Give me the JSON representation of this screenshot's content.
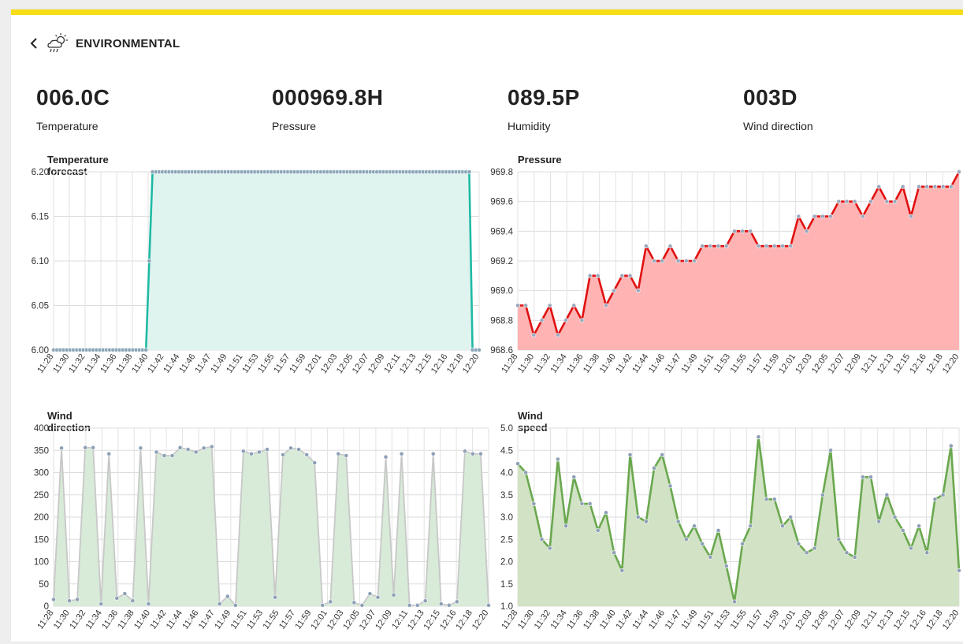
{
  "header": {
    "title": "ENVIRONMENTAL",
    "back_icon": "chevron-left-icon",
    "weather_icon": "partly-cloudy-rain-icon"
  },
  "stats": [
    {
      "value": "006.0C",
      "label": "Temperature"
    },
    {
      "value": "000969.8H",
      "label": "Pressure"
    },
    {
      "value": "089.5P",
      "label": "Humidity"
    },
    {
      "value": "003D",
      "label": "Wind direction"
    }
  ],
  "colors": {
    "accent_bar": "#f7dd16",
    "temp_line": "#1ebaa4",
    "pressure_line": "#e01010",
    "wind_dir_line": "#c8c8c8",
    "wind_speed_line": "#6aa84f"
  },
  "chart_data": [
    {
      "type": "area",
      "title": "Temperature forecast",
      "x_labels": [
        "11:28",
        "11:30",
        "11:32",
        "11:34",
        "11:36",
        "11:38",
        "11:40",
        "11:42",
        "11:44",
        "11:46",
        "11:47",
        "11:49",
        "11:51",
        "11:53",
        "11:55",
        "11:57",
        "11:59",
        "12:01",
        "12:03",
        "12:05",
        "12:07",
        "12:09",
        "12:11",
        "12:13",
        "12:15",
        "12:16",
        "12:18",
        "12:20"
      ],
      "ylim": [
        6.0,
        6.2
      ],
      "yticks": [
        "6.00",
        "6.05",
        "6.10",
        "6.15",
        "6.20"
      ],
      "series": [
        {
          "values": [
            6.0,
            6.0,
            6.0,
            6.0,
            6.0,
            6.0,
            6.0,
            6.0,
            6.0,
            6.0,
            6.0,
            6.0,
            6.0,
            6.0,
            6.0,
            6.0,
            6.0,
            6.0,
            6.0,
            6.0,
            6.0,
            6.0,
            6.0,
            6.0,
            6.0,
            6.0,
            6.0,
            6.0,
            6.0,
            6.1,
            6.2,
            6.2,
            6.2,
            6.2,
            6.2,
            6.2,
            6.2,
            6.2,
            6.2,
            6.2,
            6.2,
            6.2,
            6.2,
            6.2,
            6.2,
            6.2,
            6.2,
            6.2,
            6.2,
            6.2,
            6.2,
            6.2,
            6.2,
            6.2,
            6.2,
            6.2,
            6.2,
            6.2,
            6.2,
            6.2,
            6.2,
            6.2,
            6.2,
            6.2,
            6.2,
            6.2,
            6.2,
            6.2,
            6.2,
            6.2,
            6.2,
            6.2,
            6.2,
            6.2,
            6.2,
            6.2,
            6.2,
            6.2,
            6.2,
            6.2,
            6.2,
            6.2,
            6.2,
            6.2,
            6.2,
            6.2,
            6.2,
            6.2,
            6.2,
            6.2,
            6.2,
            6.2,
            6.2,
            6.2,
            6.2,
            6.2,
            6.2,
            6.2,
            6.2,
            6.2,
            6.2,
            6.2,
            6.2,
            6.2,
            6.2,
            6.2,
            6.2,
            6.2,
            6.2,
            6.2,
            6.2,
            6.2,
            6.2,
            6.2,
            6.2,
            6.2,
            6.2,
            6.2,
            6.2,
            6.2,
            6.2,
            6.2,
            6.2,
            6.2,
            6.2,
            6.2,
            6.2,
            6.0,
            6.0,
            6.0
          ]
        }
      ],
      "grid": true
    },
    {
      "type": "area",
      "title": "Pressure",
      "x_labels": [
        "11:28",
        "11:30",
        "11:32",
        "11:34",
        "11:36",
        "11:38",
        "11:40",
        "11:42",
        "11:44",
        "11:46",
        "11:47",
        "11:49",
        "11:51",
        "11:53",
        "11:55",
        "11:57",
        "11:59",
        "12:01",
        "12:03",
        "12:05",
        "12:07",
        "12:09",
        "12:11",
        "12:13",
        "12:15",
        "12:16",
        "12:18",
        "12:20"
      ],
      "ylim": [
        968.6,
        969.8
      ],
      "yticks": [
        "968.6",
        "968.8",
        "969.0",
        "969.2",
        "969.4",
        "969.6",
        "969.8"
      ],
      "series": [
        {
          "values": [
            968.9,
            968.9,
            968.7,
            968.8,
            968.9,
            968.7,
            968.8,
            968.9,
            968.8,
            969.1,
            969.1,
            968.9,
            969.0,
            969.1,
            969.1,
            969.0,
            969.3,
            969.2,
            969.2,
            969.3,
            969.2,
            969.2,
            969.2,
            969.3,
            969.3,
            969.3,
            969.3,
            969.4,
            969.4,
            969.4,
            969.3,
            969.3,
            969.3,
            969.3,
            969.3,
            969.5,
            969.4,
            969.5,
            969.5,
            969.5,
            969.6,
            969.6,
            969.6,
            969.5,
            969.6,
            969.7,
            969.6,
            969.6,
            969.7,
            969.5,
            969.7,
            969.7,
            969.7,
            969.7,
            969.7,
            969.8
          ]
        }
      ],
      "grid": true
    },
    {
      "type": "area",
      "title": "Wind direction",
      "x_labels": [
        "11:28",
        "11:30",
        "11:32",
        "11:34",
        "11:36",
        "11:38",
        "11:40",
        "11:42",
        "11:44",
        "11:46",
        "11:47",
        "11:49",
        "11:51",
        "11:53",
        "11:55",
        "11:57",
        "11:59",
        "12:01",
        "12:03",
        "12:05",
        "12:07",
        "12:09",
        "12:11",
        "12:13",
        "12:15",
        "12:16",
        "12:18",
        "12:20"
      ],
      "ylim": [
        0,
        400
      ],
      "yticks": [
        "0",
        "50",
        "100",
        "150",
        "200",
        "250",
        "300",
        "350",
        "400"
      ],
      "series": [
        {
          "values": [
            15,
            355,
            12,
            15,
            356,
            356,
            5,
            342,
            18,
            28,
            12,
            355,
            5,
            346,
            338,
            338,
            356,
            352,
            346,
            355,
            358,
            5,
            22,
            2,
            348,
            342,
            346,
            352,
            20,
            340,
            355,
            352,
            340,
            322,
            2,
            10,
            342,
            338,
            8,
            2,
            28,
            20,
            335,
            25,
            342,
            2,
            2,
            12,
            342,
            5,
            2,
            10,
            348,
            342,
            342,
            2
          ]
        }
      ],
      "grid": true
    },
    {
      "type": "area",
      "title": "Wind speed",
      "x_labels": [
        "11:28",
        "11:30",
        "11:32",
        "11:34",
        "11:36",
        "11:38",
        "11:40",
        "11:42",
        "11:44",
        "11:46",
        "11:47",
        "11:49",
        "11:51",
        "11:53",
        "11:55",
        "11:57",
        "11:59",
        "12:01",
        "12:03",
        "12:05",
        "12:07",
        "12:09",
        "12:11",
        "12:13",
        "12:15",
        "12:16",
        "12:18",
        "12:20"
      ],
      "ylim": [
        1.0,
        5.0
      ],
      "yticks": [
        "1.0",
        "1.5",
        "2.0",
        "2.5",
        "3.0",
        "3.5",
        "4.0",
        "4.5",
        "5.0"
      ],
      "series": [
        {
          "values": [
            4.2,
            4.0,
            3.3,
            2.5,
            2.3,
            4.3,
            2.8,
            3.9,
            3.3,
            3.3,
            2.7,
            3.1,
            2.2,
            1.8,
            4.4,
            3.0,
            2.9,
            4.1,
            4.4,
            3.7,
            2.9,
            2.5,
            2.8,
            2.4,
            2.1,
            2.7,
            1.9,
            1.1,
            2.4,
            2.8,
            4.8,
            3.4,
            3.4,
            2.8,
            3.0,
            2.4,
            2.2,
            2.3,
            3.5,
            4.5,
            2.5,
            2.2,
            2.1,
            3.9,
            3.9,
            2.9,
            3.5,
            3.0,
            2.7,
            2.3,
            2.8,
            2.2,
            3.4,
            3.5,
            4.6,
            1.8
          ]
        }
      ],
      "grid": true
    }
  ]
}
